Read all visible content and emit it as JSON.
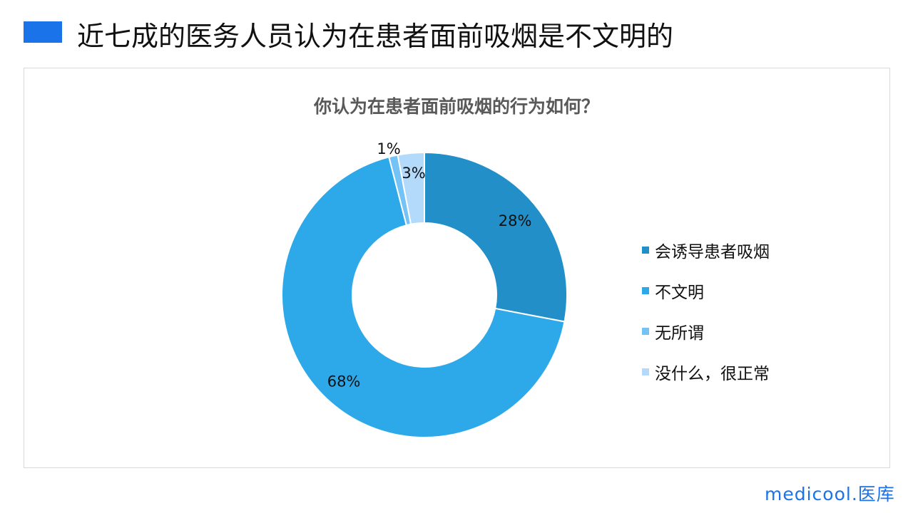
{
  "slide": {
    "heading": "近七成的医务人员认为在患者面前吸烟是不文明的",
    "accent": "#1a73e8",
    "logo": "medicool.医库"
  },
  "chart_data": {
    "type": "pie",
    "donut": true,
    "title": "你认为在患者面前吸烟的行为如何？",
    "categories": [
      "会诱导患者吸烟",
      "不文明",
      "无所谓",
      "没什么，很正常"
    ],
    "values": [
      28,
      68,
      1,
      3
    ],
    "data_labels": [
      "28%",
      "68%",
      "1%",
      "3%"
    ],
    "colors": [
      "#238FC8",
      "#2DA9EA",
      "#74C3F7",
      "#B3DAFB"
    ],
    "legend_position": "right"
  }
}
